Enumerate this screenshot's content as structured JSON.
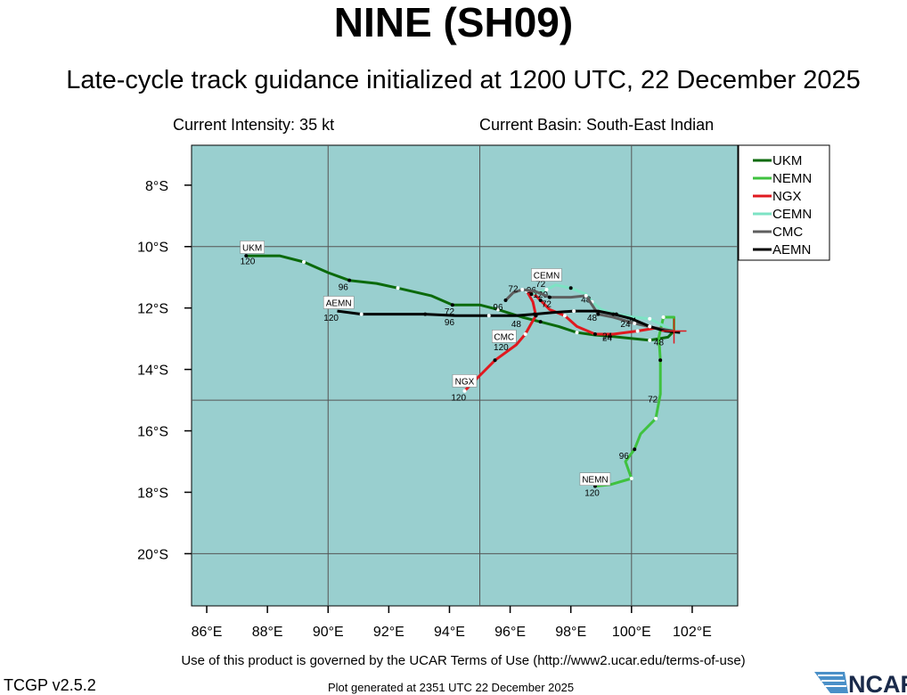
{
  "header": {
    "title": "NINE (SH09)",
    "subtitle": "Late-cycle track guidance initialized at 1200 UTC, 22 December 2025",
    "intensity": "Current Intensity: 35 kt",
    "basin": "Current Basin: South-East Indian"
  },
  "footer": {
    "terms": "Use of this product is governed by the UCAR Terms of Use (http://www2.ucar.edu/terms-of-use)",
    "version": "TCGP v2.5.2",
    "generated": "Plot generated at 2351 UTC   22 December 2025",
    "logo_text": "NCAR"
  },
  "chart_data": {
    "type": "line",
    "xlim": [
      85.5,
      103.5
    ],
    "ylim": [
      -21.7,
      -6.7
    ],
    "x_ticks": [
      86,
      88,
      90,
      92,
      94,
      96,
      98,
      100,
      102
    ],
    "x_tick_labels": [
      "86°E",
      "88°E",
      "90°E",
      "92°E",
      "94°E",
      "96°E",
      "98°E",
      "100°E",
      "102°E"
    ],
    "y_ticks": [
      -8,
      -10,
      -12,
      -14,
      -16,
      -18,
      -20
    ],
    "y_tick_labels": [
      "8°S",
      "10°S",
      "12°S",
      "14°S",
      "16°S",
      "18°S",
      "20°S"
    ],
    "grid_lon": [
      90,
      95,
      100
    ],
    "grid_lat": [
      -10,
      -15,
      -20
    ],
    "legend_position": "top-right",
    "colors": {
      "ocean": "#99cfcf",
      "grid": "#555555",
      "text": "#000000"
    },
    "series": [
      {
        "name": "UKM",
        "color": "#0b6a0b",
        "points": [
          [
            101.4,
            -12.75
          ],
          [
            101.2,
            -12.95
          ],
          [
            100.6,
            -13.05
          ],
          [
            99.9,
            -12.98
          ],
          [
            99.3,
            -12.92
          ],
          [
            98.8,
            -12.88
          ],
          [
            98.2,
            -12.8
          ],
          [
            97.6,
            -12.6
          ],
          [
            97.0,
            -12.45
          ],
          [
            96.4,
            -12.3
          ],
          [
            95.6,
            -12.05
          ],
          [
            95.0,
            -11.9
          ],
          [
            94.1,
            -11.9
          ],
          [
            93.4,
            -11.6
          ],
          [
            92.3,
            -11.35
          ],
          [
            91.6,
            -11.2
          ],
          [
            90.7,
            -11.1
          ],
          [
            90.0,
            -10.85
          ],
          [
            89.2,
            -10.5
          ],
          [
            88.4,
            -10.3
          ],
          [
            87.3,
            -10.3
          ]
        ],
        "hour_labels": [
          {
            "x": 99.2,
            "y": -12.95,
            "t": "24"
          },
          {
            "x": 94.0,
            "y": -12.1,
            "t": "72"
          },
          {
            "x": 90.5,
            "y": -11.3,
            "t": "96"
          },
          {
            "x": 87.35,
            "y": -10.45,
            "t": "120"
          }
        ],
        "end_label": {
          "x": 87.5,
          "y": -10.05,
          "t": "UKM"
        }
      },
      {
        "name": "NEMN",
        "color": "#3fc23f",
        "points": [
          [
            101.4,
            -12.75
          ],
          [
            101.4,
            -12.3
          ],
          [
            101.05,
            -12.3
          ],
          [
            100.9,
            -12.95
          ],
          [
            100.95,
            -13.7
          ],
          [
            100.95,
            -14.8
          ],
          [
            100.8,
            -15.6
          ],
          [
            100.3,
            -16.1
          ],
          [
            100.1,
            -16.6
          ],
          [
            99.8,
            -17.0
          ],
          [
            100.0,
            -17.55
          ],
          [
            99.3,
            -17.75
          ],
          [
            98.8,
            -17.8
          ]
        ],
        "hour_labels": [
          {
            "x": 100.9,
            "y": -13.1,
            "t": "48"
          },
          {
            "x": 100.7,
            "y": -14.95,
            "t": "72"
          },
          {
            "x": 99.75,
            "y": -16.8,
            "t": "96"
          },
          {
            "x": 98.7,
            "y": -18.0,
            "t": "120"
          }
        ],
        "end_label": {
          "x": 98.8,
          "y": -17.6,
          "t": "NEMN"
        }
      },
      {
        "name": "NGX",
        "color": "#e0191f",
        "points": [
          [
            101.4,
            -12.75
          ],
          [
            100.8,
            -12.65
          ],
          [
            100.2,
            -12.75
          ],
          [
            99.4,
            -12.85
          ],
          [
            98.8,
            -12.85
          ],
          [
            98.2,
            -12.6
          ],
          [
            97.8,
            -12.25
          ],
          [
            97.3,
            -12.05
          ],
          [
            97.0,
            -11.75
          ],
          [
            96.8,
            -11.55
          ],
          [
            96.55,
            -11.45
          ],
          [
            96.75,
            -11.8
          ],
          [
            96.85,
            -12.25
          ],
          [
            96.7,
            -12.5
          ],
          [
            96.5,
            -12.85
          ],
          [
            96.2,
            -13.2
          ],
          [
            95.5,
            -13.7
          ],
          [
            95.0,
            -14.2
          ],
          [
            94.5,
            -14.7
          ]
        ],
        "hour_labels": [
          {
            "x": 99.2,
            "y": -12.9,
            "t": "24"
          },
          {
            "x": 97.2,
            "y": -11.85,
            "t": "72"
          },
          {
            "x": 96.7,
            "y": -11.4,
            "t": "96"
          },
          {
            "x": 94.3,
            "y": -14.9,
            "t": "120"
          }
        ],
        "end_label": {
          "x": 94.5,
          "y": -14.4,
          "t": "NGX"
        }
      },
      {
        "name": "CEMN",
        "color": "#7de3c4",
        "points": [
          [
            101.4,
            -12.75
          ],
          [
            101.0,
            -12.55
          ],
          [
            100.6,
            -12.35
          ],
          [
            100.1,
            -12.3
          ],
          [
            99.5,
            -12.2
          ],
          [
            99.0,
            -12.05
          ],
          [
            98.7,
            -11.8
          ],
          [
            98.5,
            -11.55
          ],
          [
            98.0,
            -11.35
          ],
          [
            97.5,
            -11.25
          ],
          [
            97.2,
            -11.4
          ],
          [
            96.9,
            -11.5
          ],
          [
            96.7,
            -11.55
          ]
        ],
        "hour_labels": [
          {
            "x": 100.0,
            "y": -12.4,
            "t": "24"
          },
          {
            "x": 98.5,
            "y": -11.7,
            "t": "48"
          },
          {
            "x": 97.0,
            "y": -11.2,
            "t": "72"
          },
          {
            "x": 97.0,
            "y": -11.55,
            "t": "120"
          }
        ],
        "end_label": {
          "x": 97.2,
          "y": -10.95,
          "t": "CEMN"
        }
      },
      {
        "name": "CMC",
        "color": "#5e5e5e",
        "points": [
          [
            101.4,
            -12.75
          ],
          [
            100.8,
            -12.65
          ],
          [
            100.1,
            -12.5
          ],
          [
            99.4,
            -12.3
          ],
          [
            98.9,
            -12.2
          ],
          [
            98.7,
            -11.9
          ],
          [
            98.5,
            -11.6
          ],
          [
            98.0,
            -11.65
          ],
          [
            97.3,
            -11.65
          ],
          [
            96.8,
            -11.45
          ],
          [
            96.4,
            -11.4
          ],
          [
            96.1,
            -11.5
          ],
          [
            95.85,
            -11.75
          ]
        ],
        "hour_labels": [
          {
            "x": 98.7,
            "y": -12.3,
            "t": "48"
          },
          {
            "x": 96.1,
            "y": -11.35,
            "t": "72"
          },
          {
            "x": 95.6,
            "y": -11.95,
            "t": "96"
          },
          {
            "x": 95.7,
            "y": -13.25,
            "t": "120"
          }
        ],
        "end_label": {
          "x": 95.8,
          "y": -12.95,
          "t": "CMC"
        }
      },
      {
        "name": "AEMN",
        "color": "#000000",
        "points": [
          [
            101.6,
            -12.8
          ],
          [
            101.1,
            -12.75
          ],
          [
            100.6,
            -12.6
          ],
          [
            100.0,
            -12.35
          ],
          [
            99.4,
            -12.2
          ],
          [
            98.9,
            -12.1
          ],
          [
            98.1,
            -12.1
          ],
          [
            97.4,
            -12.15
          ],
          [
            96.8,
            -12.2
          ],
          [
            96.2,
            -12.25
          ],
          [
            95.3,
            -12.25
          ],
          [
            94.2,
            -12.25
          ],
          [
            93.2,
            -12.2
          ],
          [
            92.2,
            -12.2
          ],
          [
            91.1,
            -12.2
          ],
          [
            90.3,
            -12.1
          ]
        ],
        "hour_labels": [
          {
            "x": 99.8,
            "y": -12.5,
            "t": "24"
          },
          {
            "x": 96.2,
            "y": -12.5,
            "t": "48"
          },
          {
            "x": 94.0,
            "y": -12.45,
            "t": "96"
          },
          {
            "x": 90.1,
            "y": -12.3,
            "t": "120"
          }
        ],
        "end_label": {
          "x": 90.35,
          "y": -11.85,
          "t": "AEMN"
        }
      }
    ]
  }
}
